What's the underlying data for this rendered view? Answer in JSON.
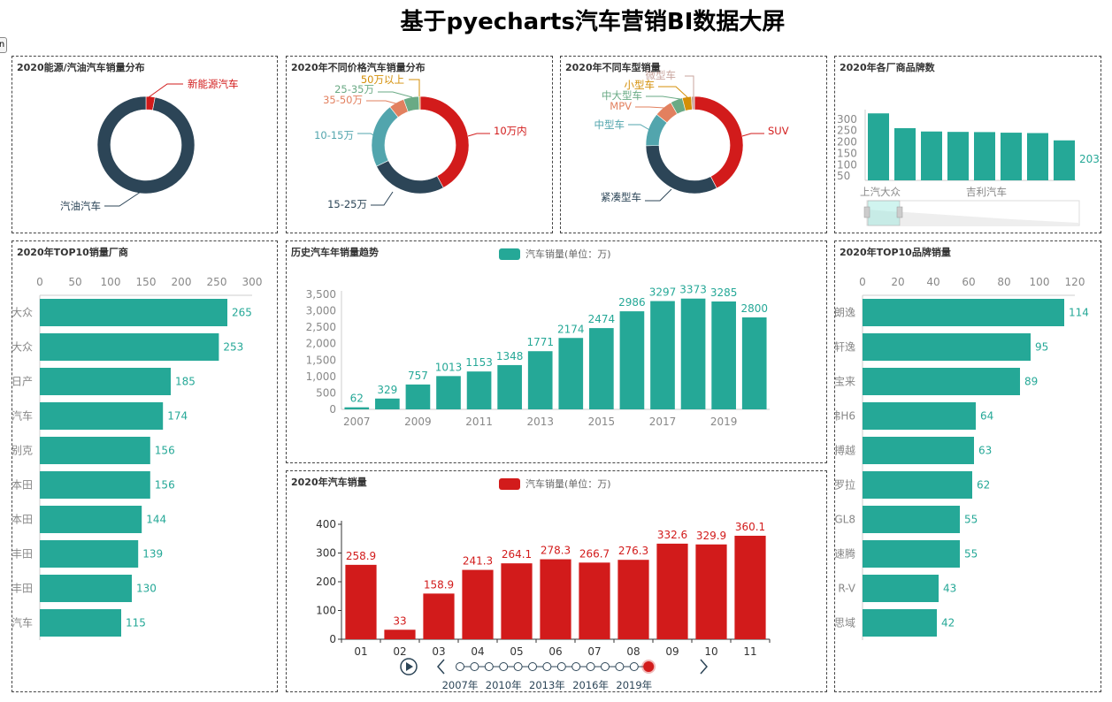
{
  "page": {
    "title": "基于pyecharts汽车营销BI数据大屏",
    "corner_button_label": "n"
  },
  "colors": {
    "teal": "#25a897",
    "red": "#d21b1b",
    "navy": "#2c4557",
    "cyan": "#52a5ad",
    "orange": "#e2805f",
    "green": "#6aaa85",
    "gold": "#d48f08",
    "pink": "#c8a59e",
    "axis_text": "#888888"
  },
  "panels": {
    "energy": {
      "title": "2020能源/汽油汽车销量分布"
    },
    "price": {
      "title": "2020年不同价格汽车销量分布"
    },
    "type": {
      "title": "2020年不同车型销量"
    },
    "brandcount": {
      "title": "2020年各厂商品牌数"
    },
    "top10maker": {
      "title": "2020年TOP10销量厂商"
    },
    "history": {
      "title": "历史汽车年销量趋势",
      "legend": "汽车销量(单位：万)"
    },
    "monthly": {
      "title": "2020年汽车销量",
      "legend": "汽车销量(单位：万)"
    },
    "top10brand": {
      "title": "2020年TOP10品牌销量"
    }
  },
  "chart_data": [
    {
      "id": "energy",
      "type": "pie",
      "title": "2020能源/汽油汽车销量分布",
      "labels": [
        "新能源汽车",
        "汽油汽车"
      ],
      "values": [
        3,
        97
      ],
      "colors": [
        "#d21b1b",
        "#2c4557"
      ]
    },
    {
      "id": "price",
      "type": "pie",
      "title": "2020年不同价格汽车销量分布",
      "labels": [
        "10万内",
        "15-25万",
        "10-15万",
        "35-50万",
        "25-35万",
        "50万以上"
      ],
      "values": [
        41,
        25,
        21,
        5,
        5,
        0.4
      ],
      "colors": [
        "#d21b1b",
        "#2c4557",
        "#52a5ad",
        "#e2805f",
        "#6aaa85",
        "#d48f08"
      ]
    },
    {
      "id": "type",
      "type": "pie",
      "title": "2020年不同车型销量",
      "labels": [
        "SUV",
        "紧凑型车",
        "中型车",
        "MPV",
        "中大型车",
        "小型车",
        "微型车"
      ],
      "values": [
        42,
        32,
        11,
        6,
        4,
        3,
        1
      ],
      "colors": [
        "#d21b1b",
        "#2c4557",
        "#52a5ad",
        "#e2805f",
        "#6aaa85",
        "#d48f08",
        "#c8a59e"
      ]
    },
    {
      "id": "brandcount",
      "type": "bar",
      "title": "2020年各厂商品牌数",
      "categories": [
        "上汽大众",
        "",
        "",
        "",
        "吉利汽车",
        "",
        "",
        ""
      ],
      "values": [
        340,
        265,
        248,
        246,
        245,
        242,
        240,
        203
      ],
      "yticks": [
        50,
        100,
        150,
        200,
        250,
        300
      ],
      "visible_label": "203",
      "datazoom": {
        "start_pct": 0,
        "end_pct": 15
      }
    },
    {
      "id": "top10maker",
      "type": "bar",
      "orientation": "horizontal",
      "title": "2020年TOP10销量厂商",
      "categories": [
        "大众",
        "大众",
        "日产",
        "汽车",
        "别克",
        "本田",
        "本田",
        "丰田",
        "丰田",
        "汽车"
      ],
      "values": [
        265,
        253,
        185,
        174,
        156,
        156,
        144,
        139,
        130,
        115
      ],
      "xticks": [
        0,
        50,
        100,
        150,
        200,
        250,
        300
      ],
      "xlim": [
        0,
        300
      ]
    },
    {
      "id": "history",
      "type": "bar",
      "title": "历史汽车年销量趋势",
      "legend": "汽车销量(单位：万)",
      "categories": [
        "2007",
        "2008",
        "2009",
        "2010",
        "2011",
        "2012",
        "2013",
        "2014",
        "2015",
        "2016",
        "2017",
        "2018",
        "2019",
        "2020"
      ],
      "xtick_labels": [
        "2007",
        "",
        "2009",
        "",
        "2011",
        "",
        "2013",
        "",
        "2015",
        "",
        "2017",
        "",
        "2019",
        ""
      ],
      "values": [
        62,
        329,
        757,
        1013,
        1153,
        1348,
        1771,
        2174,
        2474,
        2986,
        3297,
        3373,
        3285,
        2800
      ],
      "yticks": [
        "0",
        "500",
        "1,000",
        "1,500",
        "2,000",
        "2,500",
        "3,000",
        "3,500"
      ],
      "ylim": [
        0,
        3500
      ]
    },
    {
      "id": "monthly",
      "type": "bar",
      "title": "2020年汽车销量",
      "legend": "汽车销量(单位：万)",
      "categories": [
        "01",
        "02",
        "03",
        "04",
        "05",
        "06",
        "07",
        "08",
        "09",
        "10",
        "11"
      ],
      "values": [
        258.9,
        33,
        158.9,
        241.3,
        264.1,
        278.3,
        266.7,
        276.3,
        332.6,
        329.9,
        360.1
      ],
      "yticks": [
        0,
        100,
        200,
        300,
        400
      ],
      "ylim": [
        0,
        400
      ],
      "timeline": {
        "labels": [
          "2007年",
          "2010年",
          "2013年",
          "2016年",
          "2019年"
        ],
        "points": 14,
        "active_index": 13
      }
    },
    {
      "id": "top10brand",
      "type": "bar",
      "orientation": "horizontal",
      "title": "2020年TOP10品牌销量",
      "categories": [
        "朗逸",
        "轩逸",
        "宝来",
        "弗H6",
        "搏越",
        "罗拉",
        "GL8",
        "速腾",
        "R-V",
        "思域"
      ],
      "values": [
        114,
        95,
        89,
        64,
        63,
        62,
        55,
        55,
        43,
        42
      ],
      "xticks": [
        0,
        20,
        40,
        60,
        80,
        100,
        120
      ],
      "xlim": [
        0,
        120
      ]
    }
  ]
}
